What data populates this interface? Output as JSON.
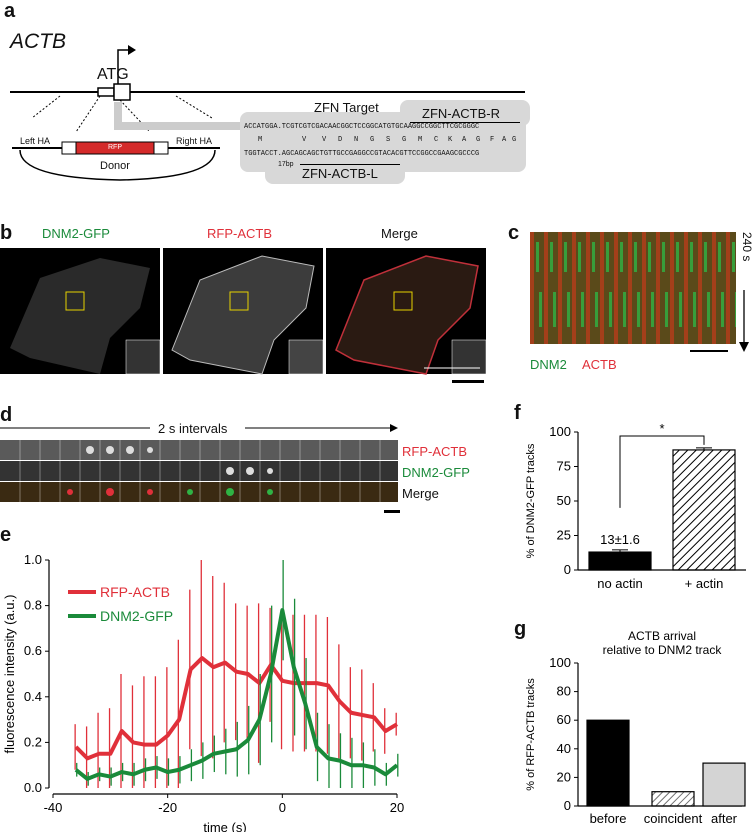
{
  "panels": {
    "a": "a",
    "b": "b",
    "c": "c",
    "d": "d",
    "e": "e",
    "f": "f",
    "g": "g"
  },
  "panel_a": {
    "gene": "ACTB",
    "atg": "ATG",
    "left_ha": "Left HA",
    "right_ha": "Right HA",
    "rfp": "RFP",
    "donor": "Donor",
    "zfn_target": "ZFN Target",
    "zfn_r": "ZFN-ACTB-R",
    "zfn_l": "ZFN-ACTB-L",
    "seq_top_hl": "ACCATGGA",
    "seq_top": "ACCATGGA.TCGTCGTCGACAACGGCTCCGGCATGTGCAAGGCCGGCTTCGCGGGC",
    "seq_aa": [
      "M",
      "V",
      "V",
      "D",
      "N",
      "G",
      "S",
      "G",
      "M",
      "C",
      "K",
      "A",
      "G",
      "F",
      "A",
      "G"
    ],
    "seq_bottom": "TGGTACCT.AGCAGCAGCTGTTGCCGAGGCCGTACACGTTCCGGCCGAAGCGCCCG",
    "gap": "17bp"
  },
  "panel_b": {
    "label1": "DNM2-GFP",
    "label2": "RFP-ACTB",
    "label3": "Merge"
  },
  "panel_c": {
    "time": "240 s",
    "dnm2": "DNM2",
    "actb": "ACTB"
  },
  "panel_d": {
    "interval": "2 s intervals",
    "row1": "RFP-ACTB",
    "row2": "DNM2-GFP",
    "row3": "Merge"
  },
  "colors": {
    "red": "#e0303a",
    "green": "#1a8a3a"
  },
  "chart_data": [
    {
      "id": "e",
      "type": "line",
      "xlabel": "time (s)",
      "ylabel": "fluorescence intensity (a.u.)",
      "xlim": [
        -40,
        20
      ],
      "ylim": [
        0,
        1.0
      ],
      "xticks": [
        -40,
        -20,
        0,
        20
      ],
      "yticks": [
        0.0,
        0.2,
        0.4,
        0.6,
        0.8,
        1.0
      ],
      "legend_position": "upper-left",
      "x": [
        -36,
        -34,
        -32,
        -30,
        -28,
        -26,
        -24,
        -22,
        -20,
        -18,
        -16,
        -14,
        -12,
        -10,
        -8,
        -6,
        -4,
        -2,
        0,
        2,
        4,
        6,
        8,
        10,
        12,
        14,
        16,
        18,
        20
      ],
      "series": [
        {
          "name": "RFP-ACTB",
          "color": "#e0303a",
          "values": [
            0.18,
            0.13,
            0.15,
            0.15,
            0.25,
            0.2,
            0.19,
            0.19,
            0.23,
            0.3,
            0.52,
            0.57,
            0.53,
            0.55,
            0.51,
            0.5,
            0.46,
            0.54,
            0.47,
            0.46,
            0.46,
            0.46,
            0.45,
            0.38,
            0.33,
            0.32,
            0.31,
            0.25,
            0.28
          ],
          "err": [
            0.1,
            0.14,
            0.18,
            0.2,
            0.25,
            0.25,
            0.3,
            0.3,
            0.3,
            0.35,
            0.35,
            0.43,
            0.4,
            0.35,
            0.3,
            0.3,
            0.35,
            0.25,
            0.3,
            0.3,
            0.3,
            0.3,
            0.3,
            0.25,
            0.2,
            0.2,
            0.15,
            0.1,
            0.05
          ]
        },
        {
          "name": "DNM2-GFP",
          "color": "#1a8a3a",
          "values": [
            0.08,
            0.04,
            0.06,
            0.05,
            0.07,
            0.06,
            0.08,
            0.09,
            0.07,
            0.08,
            0.1,
            0.12,
            0.15,
            0.16,
            0.17,
            0.21,
            0.3,
            0.5,
            0.78,
            0.53,
            0.37,
            0.18,
            0.13,
            0.12,
            0.1,
            0.1,
            0.09,
            0.06,
            0.1
          ],
          "err": [
            0.03,
            0.03,
            0.03,
            0.04,
            0.04,
            0.05,
            0.05,
            0.05,
            0.06,
            0.06,
            0.07,
            0.08,
            0.08,
            0.1,
            0.12,
            0.15,
            0.2,
            0.3,
            0.22,
            0.3,
            0.2,
            0.15,
            0.15,
            0.12,
            0.12,
            0.1,
            0.08,
            0.05,
            0.05
          ]
        }
      ]
    },
    {
      "id": "f",
      "type": "bar",
      "ylabel": "% of DNM2-GFP tracks",
      "categories": [
        "no actin",
        "+ actin"
      ],
      "values": [
        13,
        87
      ],
      "err": [
        1.6,
        1.5
      ],
      "ylim": [
        0,
        100
      ],
      "yticks": [
        0,
        25,
        50,
        75,
        100
      ],
      "annotation": "13±1.6",
      "significance": "*"
    },
    {
      "id": "g",
      "type": "bar",
      "title": "ACTB arrival relative to DNM2 track",
      "title_line1": "ACTB arrival",
      "title_line2": "relative to DNM2 track",
      "ylabel": "% of RFP-ACTB tracks",
      "categories": [
        "before",
        "coincident",
        "after"
      ],
      "values": [
        60,
        10,
        30
      ],
      "ylim": [
        0,
        100
      ],
      "yticks": [
        0,
        20,
        40,
        60,
        80,
        100
      ]
    }
  ]
}
